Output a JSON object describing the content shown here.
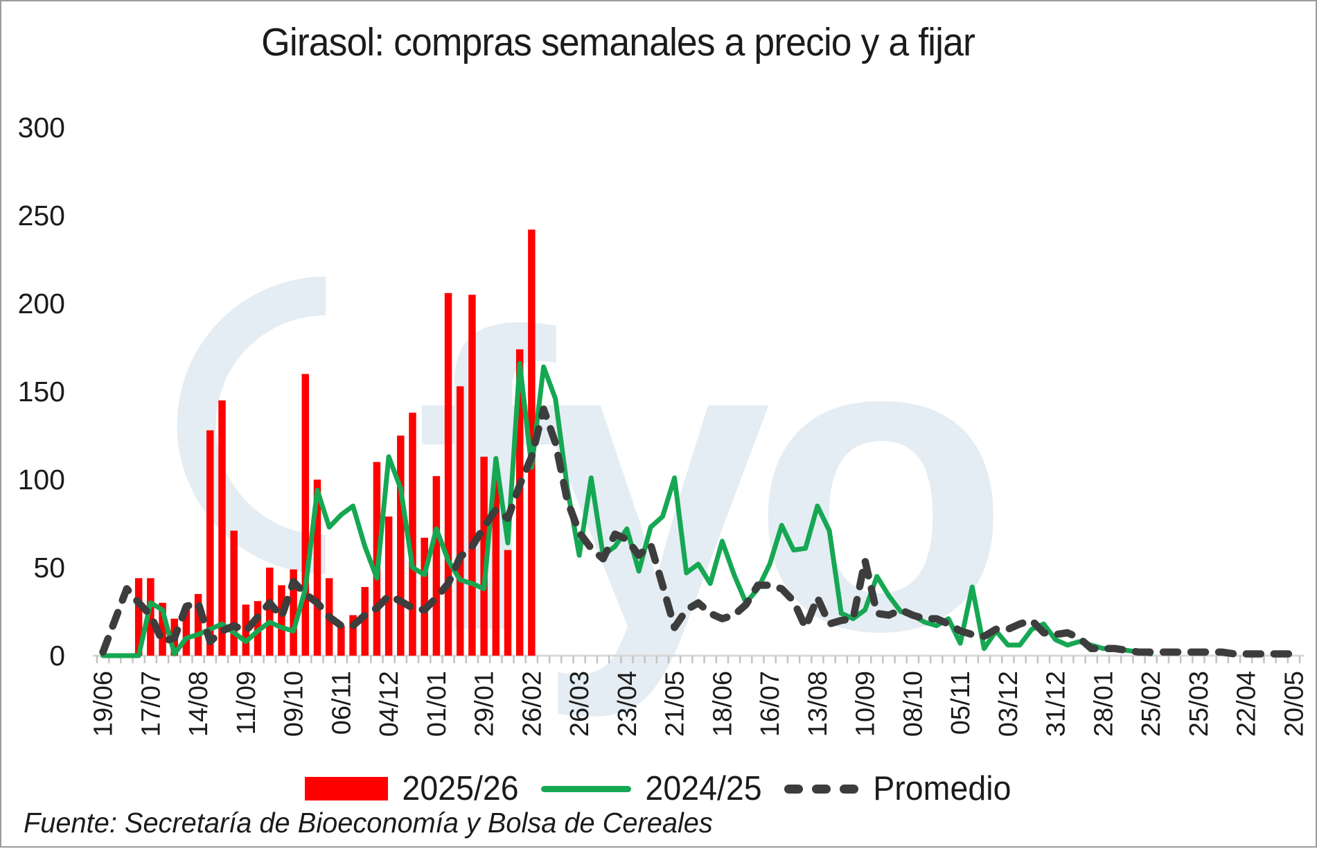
{
  "title": "Girasol: compras semanales a precio y a fijar",
  "source_note": "Fuente: Secretaría de Bioeconomía y Bolsa de Cereales",
  "watermark": {
    "text": "fyo",
    "color": "#e4edf3"
  },
  "colors": {
    "bar_2025_26": "#fe0000",
    "line_2024_25": "#16a753",
    "line_promedio": "#3d3d3d",
    "axis_line": "#d9d9d9",
    "axis_tick": "#c3c3c3",
    "axis_text": "#1b1b1b"
  },
  "legend": {
    "items": [
      {
        "label": "2025/26",
        "swatch": "bar"
      },
      {
        "label": "2024/25",
        "swatch": "line"
      },
      {
        "label": "Promedio",
        "swatch": "dashes"
      }
    ]
  },
  "chart_data": {
    "type": "combo-bar-line",
    "title": "Girasol: compras semanales a precio y a fijar",
    "ylabel": "",
    "xlabel": "",
    "ylim": [
      0,
      300
    ],
    "y_ticks": [
      0,
      50,
      100,
      150,
      200,
      250,
      300
    ],
    "grid": false,
    "legend_position": "bottom",
    "weeks_total": 101,
    "x_label_every_n_weeks": 4,
    "x_tick_labels": [
      "19/06",
      "17/07",
      "14/08",
      "11/09",
      "09/10",
      "06/11",
      "04/12",
      "01/01",
      "29/01",
      "26/02",
      "26/03",
      "23/04",
      "21/05",
      "18/06",
      "16/07",
      "13/08",
      "10/09",
      "08/10",
      "05/11",
      "03/12",
      "31/12",
      "28/01",
      "25/02",
      "25/03",
      "22/04",
      "20/05"
    ],
    "series": [
      {
        "name": "2025/26",
        "type": "bar",
        "values": [
          0,
          0,
          0,
          44,
          44,
          30,
          21,
          27,
          35,
          128,
          145,
          71,
          29,
          31,
          50,
          40,
          49,
          160,
          100,
          44,
          17,
          23,
          39,
          110,
          79,
          125,
          138,
          67,
          102,
          206,
          153,
          205,
          113,
          100,
          60,
          174,
          242
        ]
      },
      {
        "name": "2024/25",
        "type": "line",
        "values": [
          0,
          0,
          0,
          0,
          30,
          26,
          1,
          10,
          12,
          15,
          18,
          13,
          8,
          14,
          19,
          16,
          14,
          38,
          94,
          73,
          80,
          85,
          62,
          44,
          113,
          95,
          50,
          46,
          72,
          54,
          43,
          41,
          38,
          112,
          64,
          166,
          107,
          164,
          146,
          95,
          57,
          101,
          57,
          62,
          72,
          48,
          73,
          79,
          101,
          47,
          52,
          41,
          65,
          46,
          30,
          38,
          52,
          74,
          60,
          61,
          85,
          71,
          24,
          21,
          26,
          45,
          34,
          25,
          23,
          19,
          17,
          21,
          7,
          39,
          4,
          14,
          6,
          6,
          15,
          18,
          9,
          6,
          8,
          6,
          4,
          4,
          3,
          2,
          1
        ]
      },
      {
        "name": "Promedio",
        "type": "dashed-line",
        "values": [
          2,
          20,
          38,
          30,
          23,
          8,
          10,
          28,
          30,
          8,
          14,
          17,
          14,
          22,
          30,
          22,
          42,
          35,
          30,
          22,
          17,
          17,
          23,
          27,
          34,
          31,
          27,
          26,
          33,
          41,
          56,
          62,
          73,
          83,
          78,
          97,
          113,
          140,
          121,
          88,
          70,
          61,
          55,
          69,
          66,
          57,
          63,
          40,
          16,
          26,
          30,
          24,
          21,
          23,
          29,
          40,
          40,
          38,
          31,
          16,
          33,
          18,
          20,
          21,
          54,
          24,
          23,
          26,
          23,
          21,
          21,
          18,
          14,
          12,
          11,
          15,
          15,
          18,
          20,
          13,
          12,
          13,
          10,
          4,
          4,
          4,
          3,
          2,
          2,
          2,
          2,
          2,
          2,
          2,
          2,
          1,
          1,
          1,
          1,
          1,
          1
        ]
      }
    ]
  }
}
